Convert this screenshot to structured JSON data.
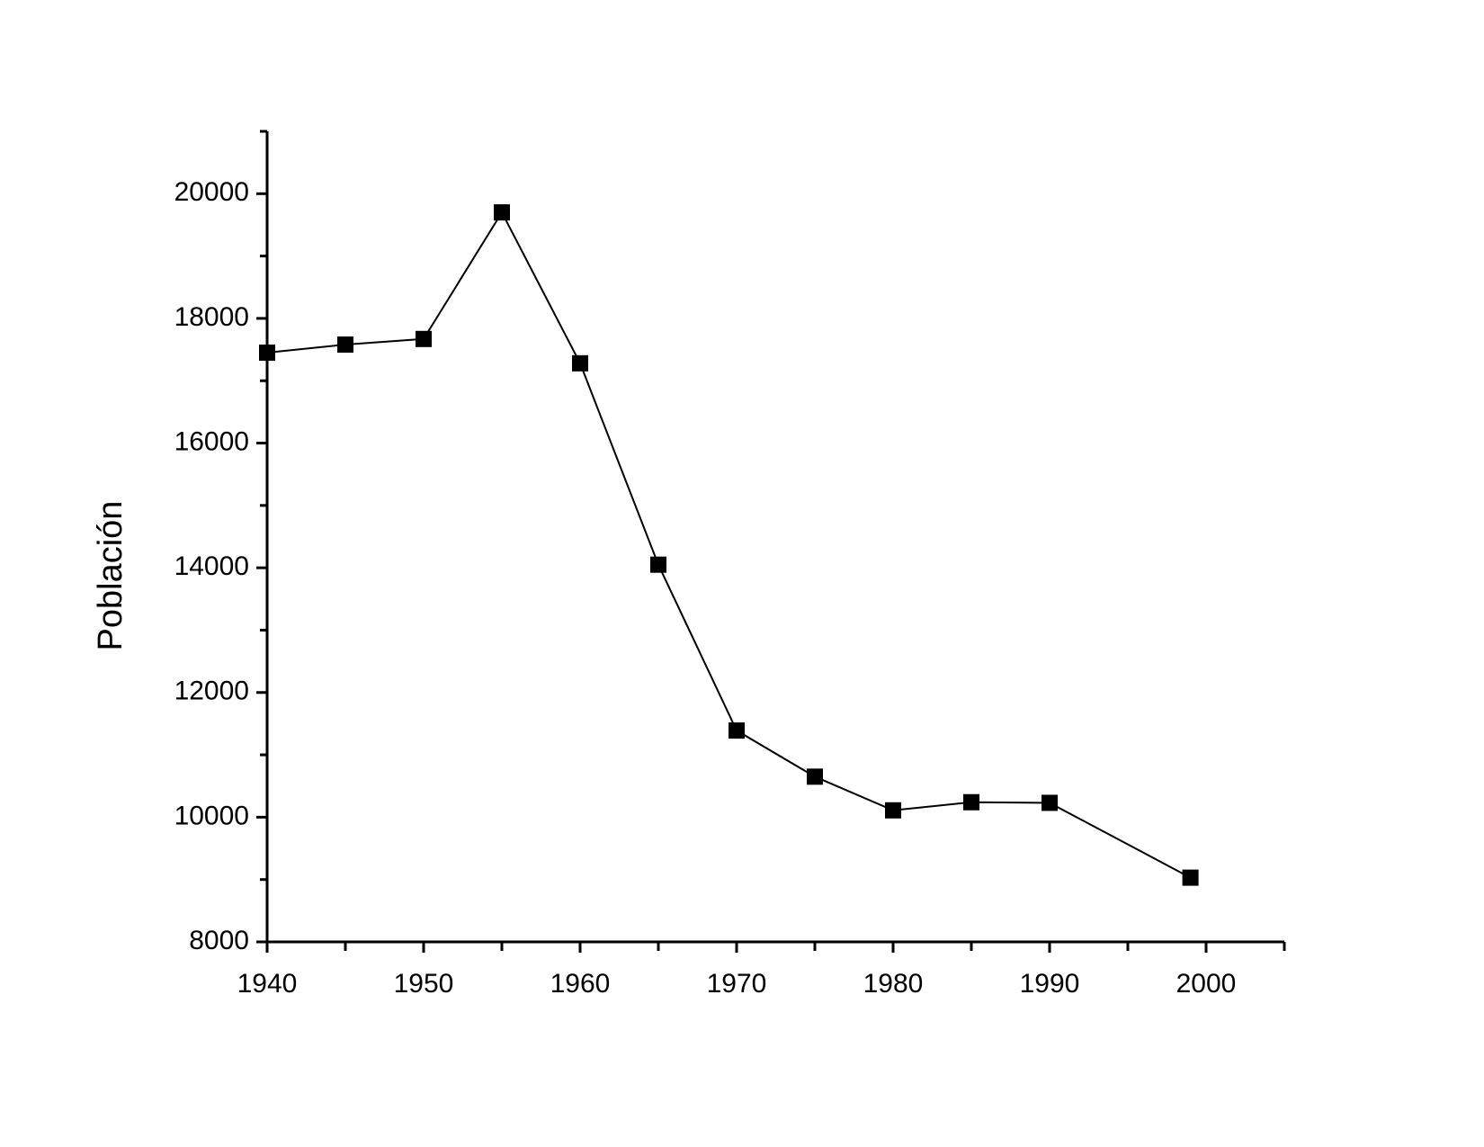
{
  "chart_data": {
    "type": "line",
    "y_label": "Población",
    "x": [
      1940,
      1945,
      1950,
      1955,
      1960,
      1965,
      1970,
      1975,
      1980,
      1985,
      1990,
      1999
    ],
    "series": [
      {
        "name": "Población",
        "color": "#000000",
        "values": [
          17450,
          17580,
          17670,
          19700,
          17280,
          14050,
          11390,
          10650,
          10110,
          10240,
          10230,
          9030
        ]
      }
    ],
    "xlim": [
      1940,
      2005
    ],
    "xticks": [
      1940,
      1950,
      1960,
      1970,
      1980,
      1990,
      2000
    ],
    "xminorticks": [
      1945,
      1955,
      1965,
      1975,
      1985,
      1995,
      2005
    ],
    "ylim": [
      8000,
      21000
    ],
    "yticks": [
      8000,
      10000,
      12000,
      14000,
      16000,
      18000,
      20000
    ],
    "yminorticks": [
      9000,
      11000,
      13000,
      15000,
      17000,
      19000,
      21000
    ],
    "grid": false,
    "marker": "square"
  }
}
